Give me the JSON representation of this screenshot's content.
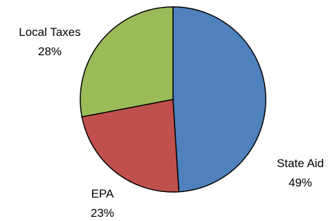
{
  "chart_data": {
    "type": "pie",
    "categories": [
      "State Aid",
      "EPA",
      "Local Taxes"
    ],
    "values": [
      49,
      23,
      28
    ],
    "data_labels": [
      "49%",
      "23%",
      "28%"
    ],
    "colors": [
      "#4f81bd",
      "#c0504d",
      "#9bbb59"
    ],
    "title": "",
    "start_angle": "12 o'clock, clockwise",
    "legend": "none"
  }
}
